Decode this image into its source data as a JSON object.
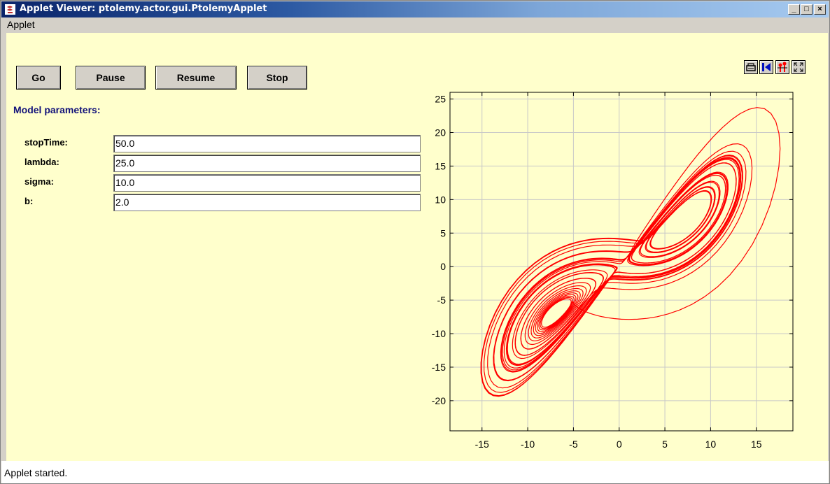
{
  "window": {
    "title": "Applet Viewer: ptolemy.actor.gui.PtolemyApplet",
    "minimize": "_",
    "maximize": "□",
    "close": "×"
  },
  "menu": {
    "items": [
      "Applet"
    ]
  },
  "buttons": {
    "go": "Go",
    "pause": "Pause",
    "resume": "Resume",
    "stop": "Stop"
  },
  "params": {
    "title": "Model parameters:",
    "rows": [
      {
        "label": "stopTime:",
        "value": "50.0"
      },
      {
        "label": "lambda:",
        "value": "25.0"
      },
      {
        "label": "sigma:",
        "value": "10.0"
      },
      {
        "label": "b:",
        "value": "2.0"
      }
    ]
  },
  "plot_toolbar": {
    "icons": [
      "print-icon",
      "reset-axes-icon",
      "format-icon",
      "fill-icon"
    ]
  },
  "chart_data": {
    "type": "line",
    "title": "",
    "xlabel": "",
    "ylabel": "",
    "xlim": [
      -18.5,
      19
    ],
    "ylim": [
      -24.5,
      26
    ],
    "xticks": [
      -15,
      -10,
      -5,
      0,
      5,
      10,
      15
    ],
    "yticks": [
      -20,
      -15,
      -10,
      -5,
      0,
      5,
      10,
      15,
      20,
      25
    ],
    "grid": true,
    "color": "#ff0000",
    "series": [
      {
        "system": "Lorenz",
        "sigma": 10.0,
        "lambda": 25.0,
        "b": 2.0,
        "stopTime": 50.0
      }
    ]
  },
  "status": {
    "text": "Applet started."
  }
}
